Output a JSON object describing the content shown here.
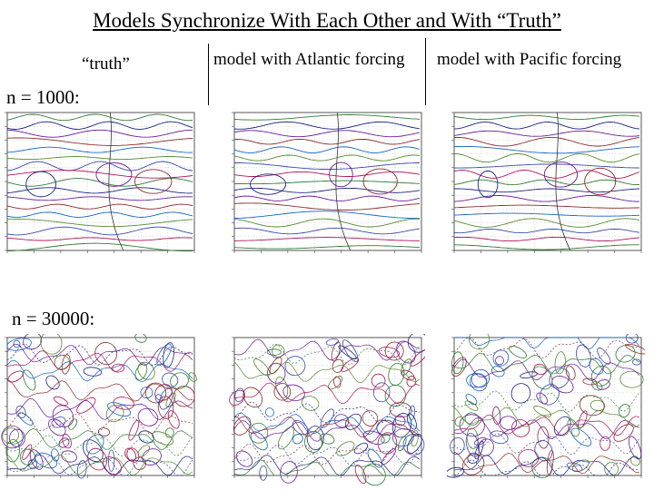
{
  "slide": {
    "title": "Models Synchronize With Each Other and With “Truth”"
  },
  "columns": [
    {
      "label": "“truth”"
    },
    {
      "label": "model with Atlantic forcing"
    },
    {
      "label": "model with Pacific forcing"
    }
  ],
  "rows": [
    {
      "label": "n = 1000:",
      "style": "zonal-bands"
    },
    {
      "label": "n = 30000:",
      "style": "cellular-eddies"
    }
  ],
  "colors": {
    "line_colors": [
      "#2e7d32",
      "#1a237e",
      "#6a1b9a",
      "#8d2b2b",
      "#1565c0",
      "#558b2f",
      "#3949ab",
      "#ad1457"
    ],
    "grid": "#bdbdbd",
    "frame": "#555555"
  }
}
